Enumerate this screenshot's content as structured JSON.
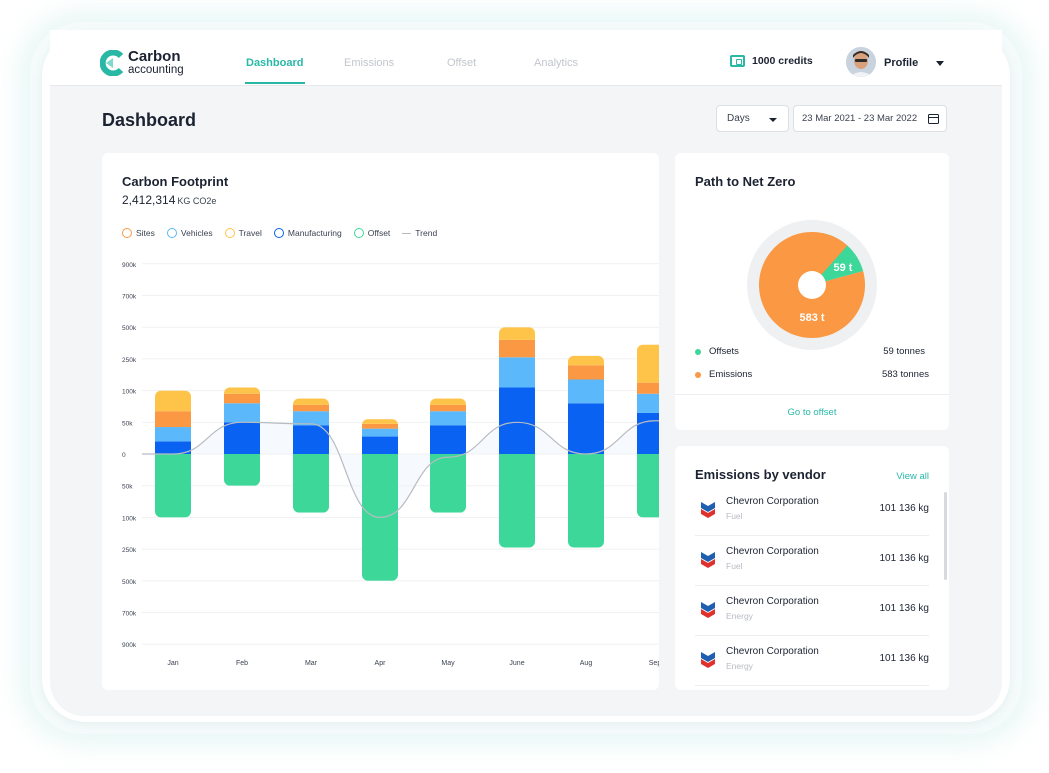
{
  "app": {
    "brand_line1": "Carbon",
    "brand_line2": "accounting"
  },
  "nav": {
    "tabs": [
      {
        "label": "Dashboard",
        "active": true
      },
      {
        "label": "Emissions",
        "active": false
      },
      {
        "label": "Offset",
        "active": false
      },
      {
        "label": "Analytics",
        "active": false
      }
    ],
    "credits": "1000 credits",
    "profile": "Profile"
  },
  "page": {
    "title": "Dashboard",
    "period_select": "Days",
    "date_range": "23 Mar 2021 - 23 Mar 2022"
  },
  "footprint": {
    "title": "Carbon Footprint",
    "total": "2,412,314",
    "unit": "KG CO2e",
    "legend": [
      {
        "label": "Sites",
        "color": "#fb9843"
      },
      {
        "label": "Vehicles",
        "color": "#5ab8fb"
      },
      {
        "label": "Travel",
        "color": "#fec44a"
      },
      {
        "label": "Manufacturing",
        "color": "#0a62f2"
      },
      {
        "label": "Offset",
        "color": "#3dd79a"
      },
      {
        "label": "Trend",
        "color": "#b8bcc2"
      }
    ]
  },
  "chart_data": {
    "type": "bar",
    "stacked": true,
    "y_tick_labels": [
      "900k",
      "700k",
      "500k",
      "250k",
      "100k",
      "50k",
      "0",
      "50k",
      "100k",
      "250k",
      "500k",
      "700k",
      "900k"
    ],
    "categories": [
      "Jan",
      "Feb",
      "Mar",
      "Apr",
      "May",
      "June",
      "Aug",
      "Sep"
    ],
    "note_scale": "tick positions evenly spaced; values below given in tick-index units above/below 0 (1 unit = one tick step)",
    "series": [
      {
        "name": "Manufacturing",
        "color": "#0a62f2",
        "values": [
          0.4,
          1.0,
          0.9,
          0.55,
          0.9,
          2.1,
          1.6,
          1.3
        ]
      },
      {
        "name": "Vehicles",
        "color": "#5ab8fb",
        "values": [
          0.45,
          0.6,
          0.45,
          0.25,
          0.45,
          0.95,
          0.75,
          0.6
        ]
      },
      {
        "name": "Sites",
        "color": "#fb9843",
        "values": [
          0.5,
          0.3,
          0.2,
          0.15,
          0.2,
          0.55,
          0.45,
          0.35
        ]
      },
      {
        "name": "Travel",
        "color": "#fec44a",
        "values": [
          0.65,
          0.2,
          0.2,
          0.15,
          0.2,
          0.4,
          0.3,
          1.2
        ]
      },
      {
        "name": "Offset",
        "color": "#3dd79a",
        "values": [
          -2.0,
          -1.0,
          -1.85,
          -4.0,
          -1.85,
          -2.95,
          -2.95,
          -2.0
        ]
      }
    ],
    "trend": {
      "name": "Trend",
      "color": "#b8bcc2",
      "values": [
        0.0,
        1.0,
        0.95,
        -2.0,
        -0.1,
        1.0,
        0.0,
        1.05
      ]
    }
  },
  "net_zero": {
    "title": "Path to Net Zero",
    "slices": [
      {
        "label": "Offsets",
        "value": 59,
        "display": "59 t",
        "amount": "59 tonnes",
        "color": "#3dd79a"
      },
      {
        "label": "Emissions",
        "value": 583,
        "display": "583 t",
        "amount": "583 tonnes",
        "color": "#fb9843"
      }
    ],
    "link": "Go to offset"
  },
  "vendors": {
    "title": "Emissions by vendor",
    "view_all": "View all",
    "items": [
      {
        "name": "Chevron Corporation",
        "type": "Fuel",
        "amount": "101 136 kg"
      },
      {
        "name": "Chevron Corporation",
        "type": "Fuel",
        "amount": "101 136 kg"
      },
      {
        "name": "Chevron Corporation",
        "type": "Energy",
        "amount": "101 136 kg"
      },
      {
        "name": "Chevron Corporation",
        "type": "Energy",
        "amount": "101 136 kg"
      }
    ]
  }
}
